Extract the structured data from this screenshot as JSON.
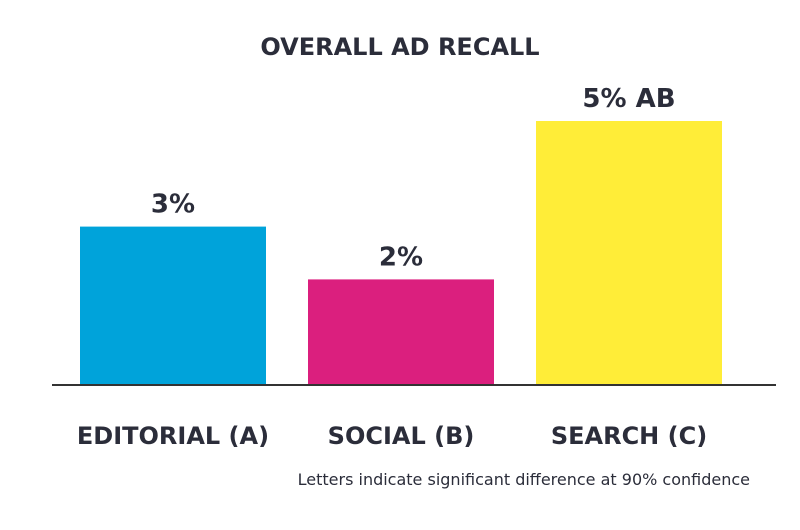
{
  "chart_data": {
    "type": "bar",
    "title": "OVERALL AD RECALL",
    "categories": [
      "EDITORIAL (A)",
      "SOCIAL (B)",
      "SEARCH (C)"
    ],
    "values": [
      3,
      2,
      5
    ],
    "data_labels": [
      "3%",
      "2%",
      "5% AB"
    ],
    "colors": [
      "#00A3DA",
      "#DB1F7E",
      "#FFED38"
    ],
    "ylim": [
      0,
      5
    ],
    "xlabel": "",
    "ylabel": "",
    "grid": false,
    "footnote": "Letters indicate significant difference at 90% confidence"
  }
}
